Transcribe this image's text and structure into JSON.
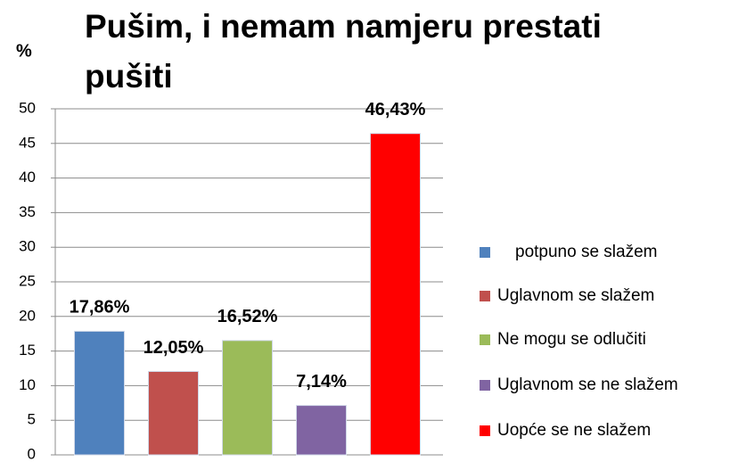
{
  "chart_data": {
    "type": "bar",
    "title": "Pušim, i nemam namjeru prestati pušiti",
    "ylabel": "%",
    "categories": [
      "potpuno se slažem",
      "Uglavnom se slažem",
      "Ne mogu se odlučiti",
      "Uglavnom se ne slažem",
      "Uopće se ne slažem"
    ],
    "values": [
      17.86,
      12.05,
      16.52,
      7.14,
      46.43
    ],
    "value_labels": [
      "17,86%",
      "12,05%",
      "16,52%",
      "7,14%",
      "46,43%"
    ],
    "colors": [
      "#4f81bd",
      "#c0504d",
      "#9bbb59",
      "#8064a2",
      "#ff0000"
    ],
    "ylim": [
      0,
      50
    ],
    "yticks": [
      0,
      5,
      10,
      15,
      20,
      25,
      30,
      35,
      40,
      45,
      50
    ],
    "grid": true,
    "legend": "right"
  }
}
